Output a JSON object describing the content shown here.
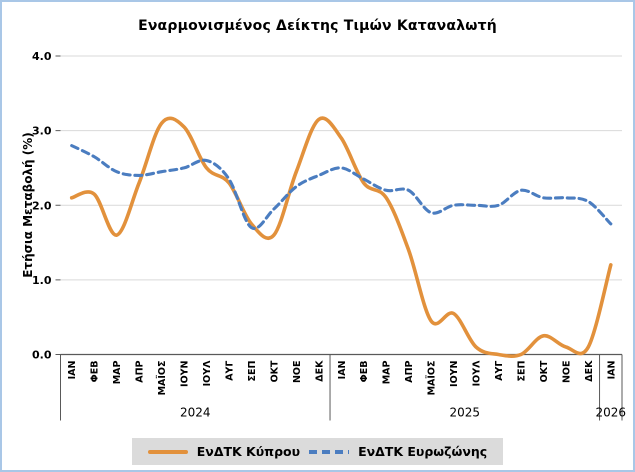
{
  "chart_data": {
    "type": "line",
    "title": "Εναρμονισμένος Δείκτης Τιμών Καταναλωτή",
    "ylabel": "Ετήσια Μεταβολή (%)",
    "ylim": [
      0.0,
      4.0
    ],
    "ytick_labels": [
      "0.0",
      "1.0",
      "2.0",
      "3.0",
      "4.0"
    ],
    "grid": true,
    "smooth_lines": true,
    "legend_position": "bottom",
    "x_labels": [
      "ΙΑΝ",
      "ΦΕΒ",
      "ΜΑΡ",
      "ΑΠΡ",
      "ΜΑΪΟΣ",
      "ΙΟΥΝ",
      "ΙΟΥΛ",
      "ΑΥΓ",
      "ΣΕΠ",
      "ΟΚΤ",
      "ΝΟΕ",
      "ΔΕΚ",
      "ΙΑΝ",
      "ΦΕΒ",
      "ΜΑΡ",
      "ΑΠΡ",
      "ΜΑΪΟΣ",
      "ΙΟΥΝ",
      "ΙΟΥΛ",
      "ΑΥΓ",
      "ΣΕΠ",
      "ΟΚΤ",
      "ΝΟΕ",
      "ΔΕΚ",
      "ΙΑΝ"
    ],
    "x_years": [
      {
        "label": "2024",
        "span": [
          0,
          11
        ]
      },
      {
        "label": "2025",
        "span": [
          12,
          23
        ]
      },
      {
        "label": "2026",
        "span": [
          24,
          24
        ]
      }
    ],
    "series": [
      {
        "name": "ΕνΔΤΚ Κύπρου",
        "color": "#E2913C",
        "style": "solid",
        "values": [
          2.1,
          2.15,
          1.6,
          2.3,
          3.1,
          3.05,
          2.5,
          2.3,
          1.75,
          1.6,
          2.45,
          3.15,
          2.9,
          2.3,
          2.1,
          1.4,
          0.45,
          0.55,
          0.1,
          0.0,
          0.0,
          0.25,
          0.1,
          0.1,
          1.2
        ]
      },
      {
        "name": "ΕνΔΤΚ Ευρωζώνης",
        "color": "#4B7DC0",
        "style": "dashed",
        "values": [
          2.8,
          2.65,
          2.45,
          2.4,
          2.45,
          2.5,
          2.6,
          2.35,
          1.7,
          1.95,
          2.25,
          2.4,
          2.5,
          2.35,
          2.2,
          2.2,
          1.9,
          2.0,
          2.0,
          2.0,
          2.2,
          2.1,
          2.1,
          2.05,
          1.75
        ]
      }
    ],
    "colors": {
      "gridline": "#D9D9D9",
      "axis": "#595959",
      "text": "#000000",
      "legend_background": "#DBDBDB",
      "window_border": "#A9C7E7"
    }
  }
}
